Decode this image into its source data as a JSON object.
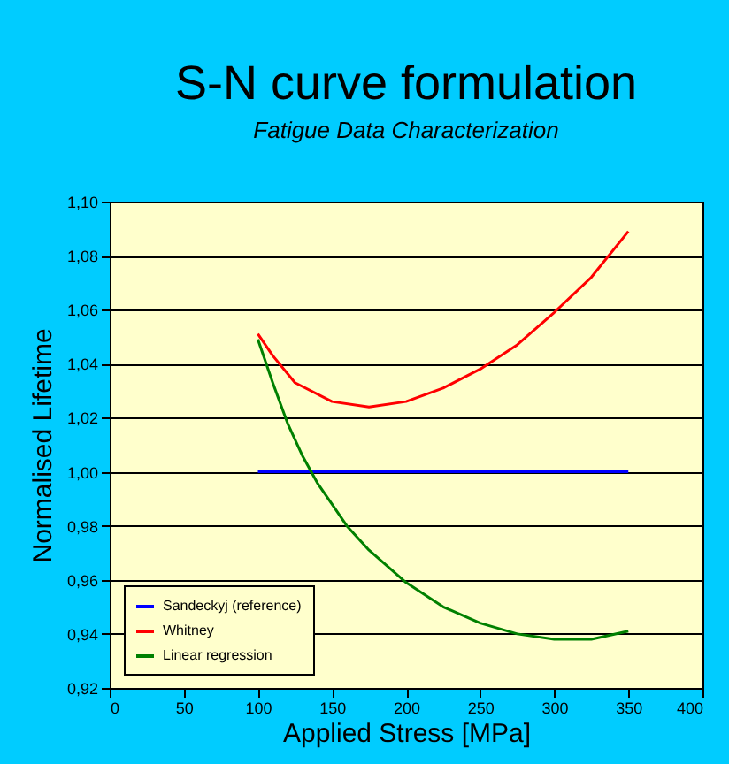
{
  "chart_data": {
    "type": "line",
    "title": "S-N curve formulation",
    "subtitle": "Fatigue Data Characterization",
    "xlabel": "Applied Stress [MPa]",
    "ylabel": "Normalised Lifetime",
    "xlim": [
      0,
      400
    ],
    "xticks": [
      0,
      50,
      100,
      150,
      200,
      250,
      300,
      350,
      400
    ],
    "ylim": [
      0.92,
      1.1
    ],
    "yticks": [
      {
        "value": 0.92,
        "label": "0,92"
      },
      {
        "value": 0.94,
        "label": "0,94"
      },
      {
        "value": 0.96,
        "label": "0,96"
      },
      {
        "value": 0.98,
        "label": "0,98"
      },
      {
        "value": 1.0,
        "label": "1,00"
      },
      {
        "value": 1.02,
        "label": "1,02"
      },
      {
        "value": 1.04,
        "label": "1,04"
      },
      {
        "value": 1.06,
        "label": "1,06"
      },
      {
        "value": 1.08,
        "label": "1,08"
      },
      {
        "value": 1.1,
        "label": "1,10"
      }
    ],
    "grid": "y",
    "legend": "bottom left",
    "marker": "none",
    "series": [
      {
        "name": "Sandeckyj (reference)",
        "color": "#0000ff",
        "x": [
          100,
          350
        ],
        "values": [
          1.0,
          1.0
        ]
      },
      {
        "name": "Whitney",
        "color": "#ff0000",
        "x": [
          100,
          110,
          125,
          150,
          175,
          200,
          225,
          250,
          275,
          300,
          325,
          350
        ],
        "values": [
          1.051,
          1.043,
          1.033,
          1.026,
          1.024,
          1.026,
          1.031,
          1.038,
          1.047,
          1.059,
          1.072,
          1.089
        ]
      },
      {
        "name": "Linear regression",
        "color": "#008000",
        "x": [
          100,
          110,
          120,
          130,
          140,
          150,
          160,
          175,
          200,
          225,
          250,
          275,
          300,
          325,
          350
        ],
        "values": [
          1.049,
          1.033,
          1.018,
          1.006,
          0.996,
          0.988,
          0.98,
          0.971,
          0.959,
          0.95,
          0.944,
          0.94,
          0.938,
          0.938,
          0.941
        ]
      }
    ]
  }
}
